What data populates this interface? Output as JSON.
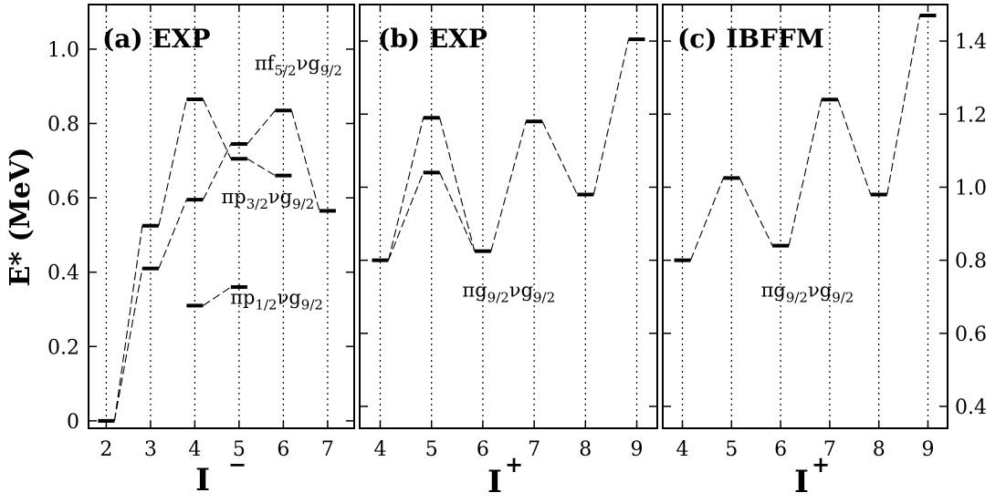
{
  "chart_data": [
    {
      "id": "a",
      "type": "line",
      "panel_label": "(a) EXP",
      "xlabel": "I",
      "xlabel_sup": "−",
      "ylabel": "E* (MeV)",
      "xlim": [
        1.6,
        7.6
      ],
      "ylim": [
        -0.02,
        1.12
      ],
      "x_ticks": [
        2,
        3,
        4,
        5,
        6,
        7
      ],
      "y_ticks": [
        0,
        0.2,
        0.4,
        0.6,
        0.8,
        1.0
      ],
      "y_tick_labels": [
        "0",
        "0.2",
        "0.4",
        "0.6",
        "0.8",
        "1.0"
      ],
      "series": [
        {
          "name": "πf5/2νg9/2",
          "x": [
            2,
            3,
            4,
            5,
            6
          ],
          "y": [
            0.0,
            0.525,
            0.865,
            0.705,
            0.66
          ]
        },
        {
          "name": "πp3/2νg9/2",
          "x": [
            2,
            3,
            4,
            5,
            6,
            7
          ],
          "y": [
            0.0,
            0.41,
            0.595,
            0.745,
            0.835,
            0.565
          ]
        },
        {
          "name": "πp1/2νg9/2",
          "x": [
            4,
            5
          ],
          "y": [
            0.31,
            0.36
          ]
        }
      ],
      "annotations": [
        {
          "text_main": "πf",
          "sub1": "5/2",
          "mid": "νg",
          "sub2": "9/2",
          "x": 5.35,
          "y": 0.945
        },
        {
          "text_main": "πp",
          "sub1": "3/2",
          "mid": "νg",
          "sub2": "9/2",
          "x": 4.6,
          "y": 0.585
        },
        {
          "text_main": "πp",
          "sub1": "1/2",
          "mid": "νg",
          "sub2": "9/2",
          "x": 4.8,
          "y": 0.315
        }
      ]
    },
    {
      "id": "b",
      "type": "line",
      "panel_label": "(b) EXP",
      "xlabel": "I",
      "xlabel_sup": "+",
      "xlim": [
        3.6,
        9.4
      ],
      "ylim": [
        0.34,
        1.5
      ],
      "x_ticks": [
        4,
        5,
        6,
        7,
        8,
        9
      ],
      "y_ticks": [
        0.4,
        0.6,
        0.8,
        1.0,
        1.2,
        1.4
      ],
      "series": [
        {
          "name": "πg9/2νg9/2",
          "x": [
            4,
            5,
            6,
            7,
            8,
            9
          ],
          "y": [
            0.8,
            1.19,
            0.825,
            1.18,
            0.98,
            1.405
          ]
        },
        {
          "name": "",
          "x": [
            4,
            5,
            6
          ],
          "y": [
            0.8,
            1.04,
            0.825
          ]
        }
      ],
      "annotations": [
        {
          "text_main": "πg",
          "sub1": "9/2",
          "mid": "νg",
          "sub2": "9/2",
          "x": 5.6,
          "y": 0.7
        }
      ]
    },
    {
      "id": "c",
      "type": "line",
      "panel_label": "(c) IBFFM",
      "xlabel": "I",
      "xlabel_sup": "+",
      "xlim": [
        3.6,
        9.4
      ],
      "ylim": [
        0.34,
        1.5
      ],
      "x_ticks": [
        4,
        5,
        6,
        7,
        8,
        9
      ],
      "y_ticks": [
        0.4,
        0.6,
        0.8,
        1.0,
        1.2,
        1.4
      ],
      "y_tick_labels": [
        "0.4",
        "0.6",
        "0.8",
        "1.0",
        "1.2",
        "1.4"
      ],
      "series": [
        {
          "name": "πg9/2νg9/2",
          "x": [
            4,
            5,
            6,
            7,
            8,
            9
          ],
          "y": [
            0.8,
            1.025,
            0.84,
            1.24,
            0.98,
            1.47
          ]
        }
      ],
      "annotations": [
        {
          "text_main": "πg",
          "sub1": "9/2",
          "mid": "νg",
          "sub2": "9/2",
          "x": 5.6,
          "y": 0.7
        }
      ]
    }
  ]
}
